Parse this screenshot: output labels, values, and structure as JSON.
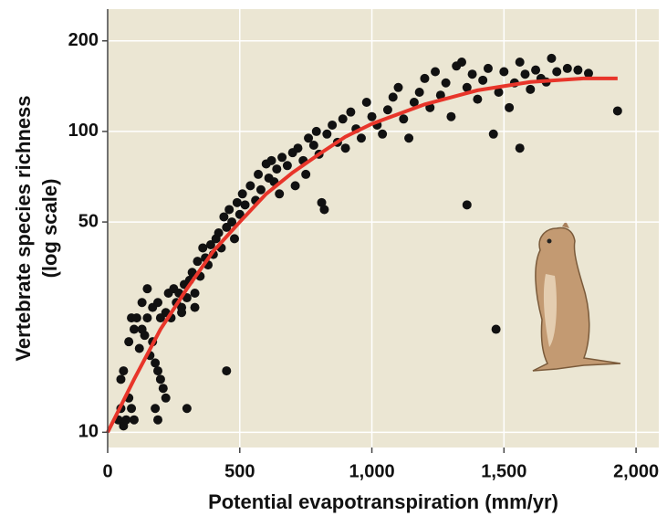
{
  "chart_data": {
    "type": "scatter",
    "xlabel": "Potential evapotranspiration (mm/yr)",
    "ylabel": "Vertebrate species richness",
    "ylabel_line2": "(log scale)",
    "y_log": true,
    "grid": true,
    "background": "#ebe6d3",
    "color": "#111111",
    "xlim": [
      0,
      2086
    ],
    "ylim": [
      8.9,
      255
    ],
    "xticks": [
      0,
      500,
      {
        "value": 1000,
        "label": "1,000"
      },
      {
        "value": 1500,
        "label": "1,500"
      },
      {
        "value": 2000,
        "label": "2,000"
      }
    ],
    "yticks": [
      10,
      50,
      100,
      200
    ],
    "x": [
      40,
      50,
      60,
      70,
      80,
      90,
      100,
      50,
      60,
      80,
      90,
      100,
      110,
      120,
      130,
      140,
      150,
      160,
      170,
      180,
      190,
      200,
      180,
      190,
      210,
      220,
      170,
      190,
      200,
      220,
      230,
      240,
      250,
      260,
      270,
      280,
      290,
      300,
      310,
      320,
      330,
      340,
      350,
      360,
      370,
      380,
      390,
      400,
      410,
      420,
      430,
      440,
      450,
      460,
      470,
      480,
      490,
      500,
      510,
      520,
      540,
      560,
      570,
      580,
      600,
      610,
      620,
      630,
      640,
      650,
      660,
      680,
      700,
      710,
      720,
      740,
      750,
      760,
      780,
      790,
      800,
      810,
      820,
      830,
      850,
      870,
      890,
      900,
      920,
      940,
      960,
      980,
      1000,
      1020,
      1040,
      1060,
      1080,
      1100,
      1120,
      1140,
      1160,
      1180,
      1200,
      1220,
      1240,
      1260,
      1280,
      1300,
      1320,
      1340,
      1360,
      1380,
      1400,
      1420,
      1440,
      1460,
      1480,
      1500,
      1520,
      1540,
      1560,
      1580,
      1600,
      1620,
      1640,
      1660,
      1680,
      1700,
      1740,
      1780,
      1820,
      1360,
      1470,
      450,
      300,
      1930,
      1560,
      280,
      330,
      150,
      130
    ],
    "values": [
      11,
      12,
      10.5,
      11,
      13,
      12,
      11,
      15,
      16,
      20,
      24,
      22,
      24,
      19,
      22,
      21,
      24,
      18,
      20,
      17,
      16,
      15,
      12,
      11,
      14,
      13,
      26,
      27,
      24,
      25,
      29,
      24,
      30,
      27,
      29,
      26,
      31,
      28,
      32,
      34,
      29,
      37,
      33,
      41,
      38,
      36,
      42,
      39,
      44,
      46,
      41,
      52,
      48,
      55,
      50,
      44,
      58,
      53,
      62,
      57,
      66,
      59,
      72,
      64,
      78,
      70,
      80,
      68,
      75,
      62,
      82,
      77,
      85,
      66,
      88,
      80,
      72,
      95,
      90,
      100,
      84,
      58,
      55,
      98,
      105,
      92,
      110,
      88,
      116,
      102,
      95,
      125,
      112,
      105,
      98,
      118,
      130,
      140,
      110,
      95,
      125,
      135,
      150,
      120,
      158,
      132,
      145,
      112,
      165,
      170,
      140,
      155,
      128,
      148,
      162,
      98,
      135,
      158,
      120,
      145,
      170,
      155,
      138,
      160,
      150,
      146,
      175,
      158,
      162,
      160,
      156,
      57,
      22,
      16,
      12,
      117,
      88,
      25,
      26,
      30,
      27
    ],
    "curve": {
      "color": "#e8352a",
      "x": [
        0,
        100,
        200,
        300,
        400,
        500,
        600,
        700,
        800,
        900,
        1000,
        1200,
        1400,
        1600,
        1800,
        1930
      ],
      "values": [
        10,
        15,
        22,
        30,
        40,
        50,
        62,
        73,
        84,
        96,
        106,
        123,
        137,
        146,
        150,
        150
      ]
    }
  }
}
